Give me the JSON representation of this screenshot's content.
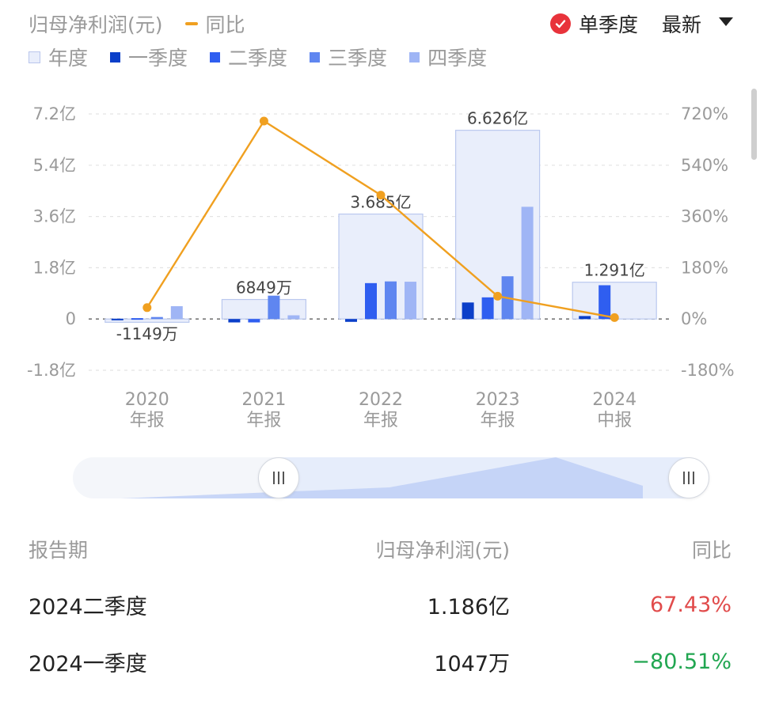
{
  "header": {
    "metric_label": "归母净利润(元)",
    "yoy_label": "同比",
    "toggle_label": "单季度",
    "sort_label": "最新"
  },
  "legend": [
    {
      "label": "年度",
      "color": "#e9eefb",
      "border": "#b9c6ec"
    },
    {
      "label": "一季度",
      "color": "#0b3fc9"
    },
    {
      "label": "二季度",
      "color": "#2f5ef0"
    },
    {
      "label": "三季度",
      "color": "#5f86f0"
    },
    {
      "label": "四季度",
      "color": "#9fb5f5"
    }
  ],
  "colors": {
    "line": "#f0a020",
    "check": "#e8333b",
    "positive": "#e14b4b",
    "negative": "#21a651",
    "axis_text": "#9a9a9a"
  },
  "chart_data": {
    "type": "bar",
    "categories": [
      {
        "year": "2020",
        "kind": "年报"
      },
      {
        "year": "2021",
        "kind": "年报"
      },
      {
        "year": "2022",
        "kind": "年报"
      },
      {
        "year": "2023",
        "kind": "年报"
      },
      {
        "year": "2024",
        "kind": "中报"
      }
    ],
    "y_left": {
      "ticks": [
        "7.2亿",
        "5.4亿",
        "3.6亿",
        "1.8亿",
        "0",
        "-1.8亿"
      ],
      "values": [
        7.2,
        5.4,
        3.6,
        1.8,
        0,
        -1.8
      ],
      "unit": "亿"
    },
    "y_right": {
      "ticks": [
        "720%",
        "540%",
        "360%",
        "180%",
        "0%",
        "-180%"
      ],
      "values": [
        720,
        540,
        360,
        180,
        0,
        -180
      ]
    },
    "annual": [
      {
        "value": -0.1149,
        "label": "-1149万"
      },
      {
        "value": 0.6849,
        "label": "6849万"
      },
      {
        "value": 3.685,
        "label": "3.685亿"
      },
      {
        "value": 6.626,
        "label": "6.626亿"
      },
      {
        "value": 1.291,
        "label": "1.291亿"
      }
    ],
    "series": [
      {
        "name": "一季度",
        "values": [
          0.01,
          -0.12,
          -0.1,
          0.58,
          0.1047
        ]
      },
      {
        "name": "二季度",
        "values": [
          0.03,
          -0.12,
          1.26,
          0.76,
          1.186
        ]
      },
      {
        "name": "三季度",
        "values": [
          0.07,
          0.82,
          1.32,
          1.5,
          null
        ]
      },
      {
        "name": "四季度",
        "values": [
          0.45,
          0.13,
          1.31,
          3.94,
          null
        ]
      }
    ],
    "yoy_line": {
      "name": "同比",
      "values": [
        40,
        695,
        435,
        80,
        5
      ]
    }
  },
  "table": {
    "headers": [
      "报告期",
      "归母净利润(元)",
      "同比"
    ],
    "rows": [
      {
        "period": "2024二季度",
        "value": "1.186亿",
        "yoy": "67.43%",
        "sign": "positive"
      },
      {
        "period": "2024一季度",
        "value": "1047万",
        "yoy": "−80.51%",
        "sign": "negative"
      }
    ]
  }
}
